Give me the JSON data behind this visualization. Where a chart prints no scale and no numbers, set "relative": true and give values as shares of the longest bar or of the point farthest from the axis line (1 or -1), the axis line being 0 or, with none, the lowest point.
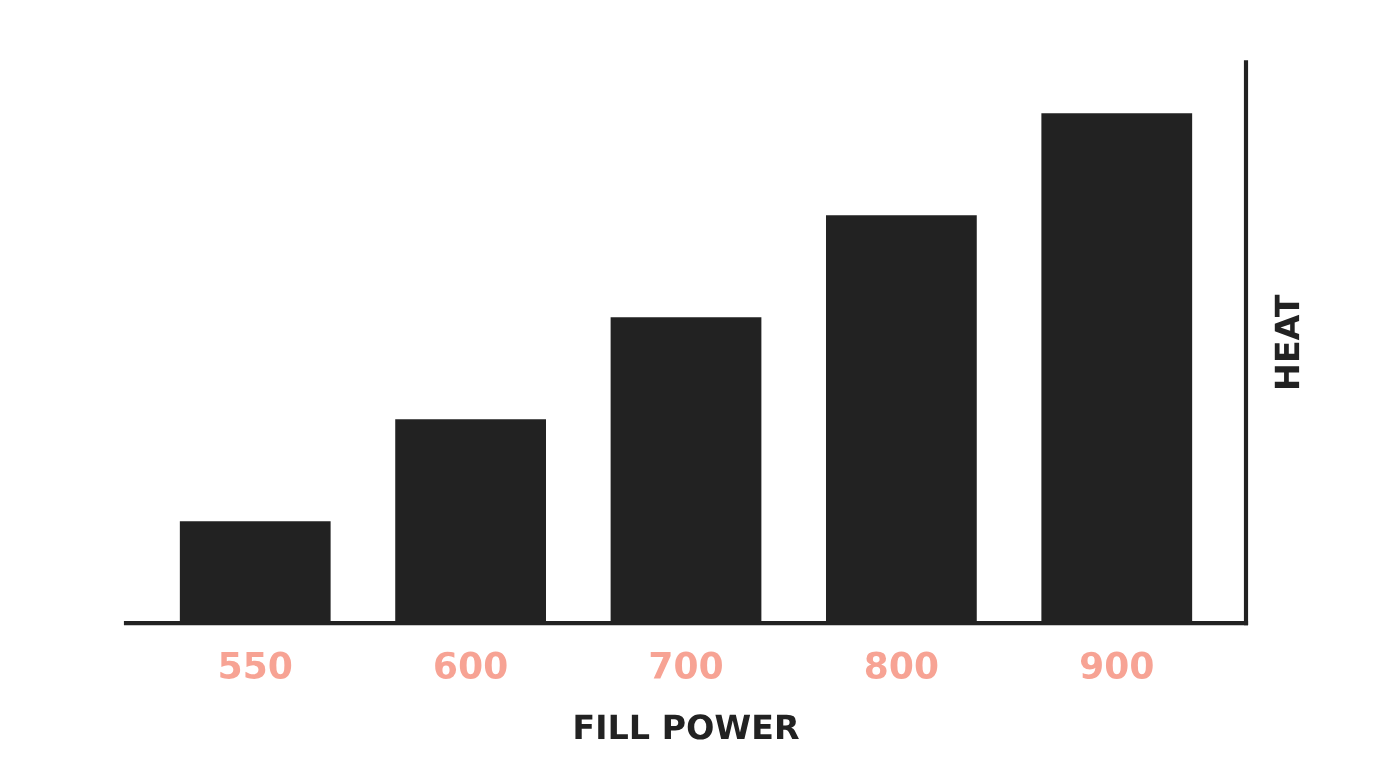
{
  "chart_data": {
    "type": "bar",
    "relative": true,
    "xlabel": "FILL POWER",
    "ylabel": "HEAT",
    "categories": [
      "550",
      "600",
      "700",
      "800",
      "900"
    ],
    "values": [
      0.2,
      0.4,
      0.6,
      0.8,
      1
    ],
    "color": "#222222",
    "grid": false,
    "legend": false
  }
}
